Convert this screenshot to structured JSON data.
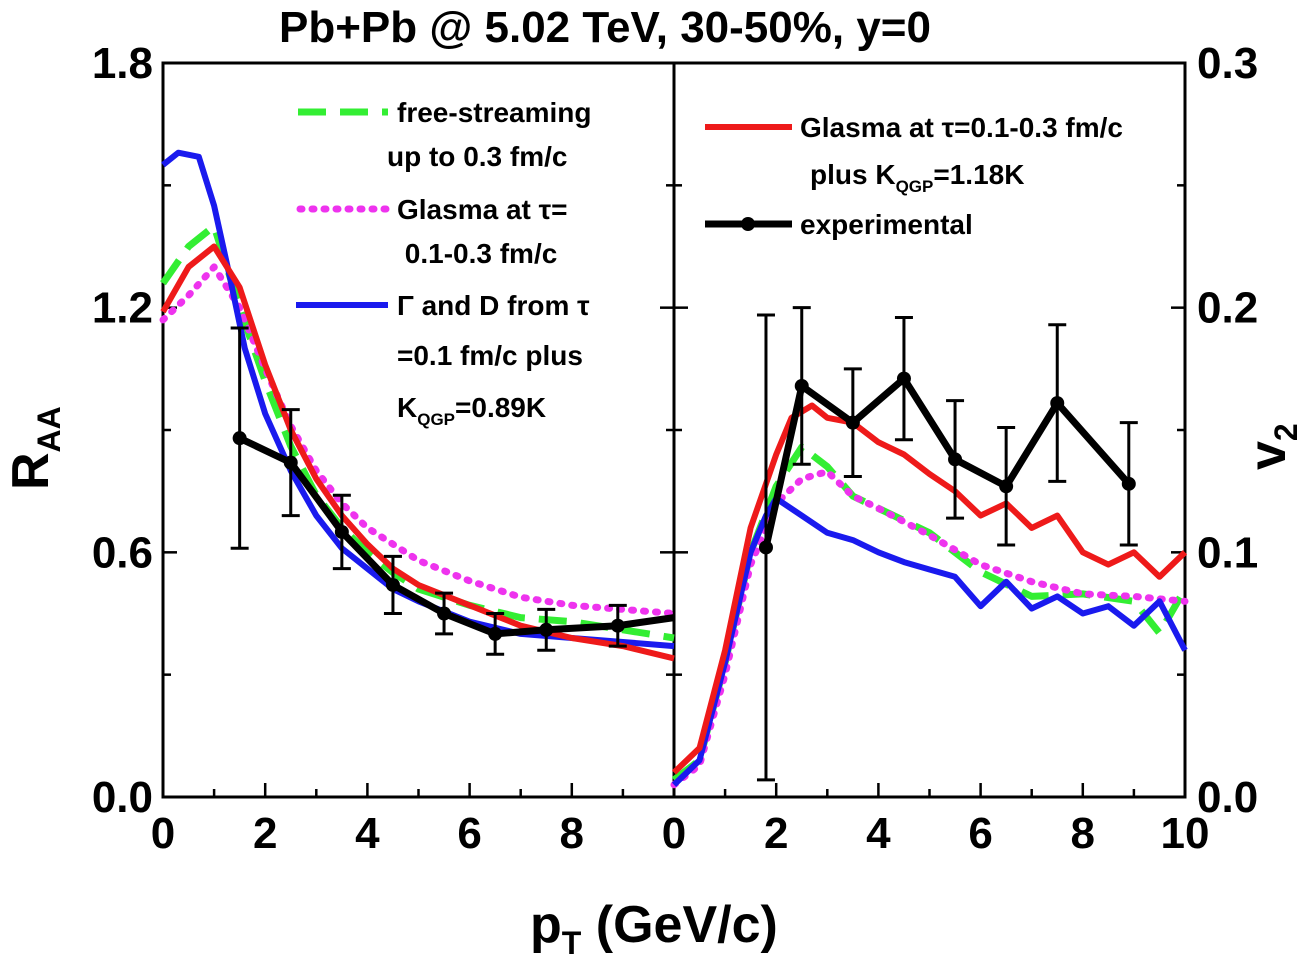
{
  "title": "Pb+Pb @ 5.02 TeV, 30-50%, y=0",
  "xlabel": {
    "main": "p",
    "sub": "T",
    "rest": " (GeV/c)"
  },
  "ylabel_left": {
    "main": "R",
    "sub": "AA"
  },
  "ylabel_right": {
    "main": "v",
    "sub": "2"
  },
  "left_legend": [
    {
      "id": "fs",
      "lines": [
        "free-streaming",
        "up to 0.3 fm/c"
      ]
    },
    {
      "id": "gl",
      "lines": [
        "Glasma at τ=",
        " 0.1-0.3 fm/c"
      ]
    },
    {
      "id": "gd",
      "lines": [
        "Γ and D from τ",
        "=0.1 fm/c plus"
      ],
      "k_main": "K",
      "k_sub": "QGP",
      "k_rest": "=0.89K"
    }
  ],
  "right_legend": [
    {
      "id": "gr",
      "lines": [
        "Glasma at τ=0.1-0.3 fm/c"
      ],
      "k_prefix": "plus K",
      "k_sub": "QGP",
      "k_rest": "=1.18K"
    },
    {
      "id": "ex",
      "lines": [
        "experimental"
      ]
    }
  ],
  "colors": {
    "free_streaming": "#33ee33",
    "glasma": "#ee33ee",
    "gamma_d": "#1a1aee",
    "glasma_k118": "#ee1a1a",
    "experimental": "#000000"
  },
  "chart_data": [
    {
      "type": "line",
      "panel": "left",
      "xlim": [
        0,
        10
      ],
      "ylim": [
        0,
        1.8
      ],
      "x_ticks": [
        "0",
        "2",
        "4",
        "6",
        "8"
      ],
      "y_ticks": [
        "0.0",
        "0.6",
        "1.2",
        "1.8"
      ],
      "ylabel": "R_AA",
      "series": [
        {
          "name": "free-streaming up to 0.3 fm/c",
          "style": "dashed",
          "x": [
            0,
            0.5,
            1,
            1.5,
            2,
            2.5,
            3,
            3.5,
            4,
            4.5,
            5,
            6,
            7,
            8,
            9,
            10
          ],
          "y": [
            1.26,
            1.35,
            1.4,
            1.2,
            1.02,
            0.86,
            0.74,
            0.66,
            0.6,
            0.55,
            0.51,
            0.47,
            0.44,
            0.43,
            0.41,
            0.39
          ]
        },
        {
          "name": "Glasma at τ= 0.1-0.3 fm/c",
          "style": "dotted",
          "x": [
            0,
            0.5,
            1,
            1.5,
            2,
            2.5,
            3,
            3.5,
            4,
            4.5,
            5,
            6,
            7,
            8,
            9,
            10
          ],
          "y": [
            1.17,
            1.23,
            1.3,
            1.2,
            1.05,
            0.91,
            0.8,
            0.72,
            0.66,
            0.62,
            0.58,
            0.53,
            0.49,
            0.47,
            0.46,
            0.45
          ]
        },
        {
          "name": "Γ and D from τ =0.1 fm/c plus K_QGP=0.89K",
          "style": "solid",
          "x": [
            0,
            0.3,
            0.7,
            1,
            1.3,
            1.6,
            2,
            2.5,
            3,
            3.5,
            4,
            4.5,
            5,
            6,
            7,
            8,
            9,
            10
          ],
          "y": [
            1.55,
            1.58,
            1.57,
            1.45,
            1.28,
            1.1,
            0.94,
            0.8,
            0.69,
            0.61,
            0.56,
            0.51,
            0.48,
            0.43,
            0.4,
            0.39,
            0.38,
            0.37
          ]
        },
        {
          "name": "Glasma at τ=0.1-0.3 fm/c plus K_QGP=1.18K",
          "style": "solid",
          "x": [
            0,
            0.5,
            1,
            1.5,
            2,
            2.5,
            3,
            3.5,
            4,
            4.5,
            5,
            6,
            7,
            8,
            9,
            10
          ],
          "y": [
            1.19,
            1.3,
            1.35,
            1.25,
            1.06,
            0.9,
            0.78,
            0.69,
            0.62,
            0.56,
            0.52,
            0.47,
            0.42,
            0.39,
            0.37,
            0.34
          ]
        },
        {
          "name": "experimental",
          "style": "line-markers",
          "x": [
            1.5,
            2.5,
            3.5,
            4.5,
            5.5,
            6.5,
            7.5,
            8.9,
            10
          ],
          "y": [
            0.88,
            0.82,
            0.65,
            0.52,
            0.45,
            0.4,
            0.41,
            0.42,
            0.44
          ],
          "err": [
            0.27,
            0.13,
            0.09,
            0.07,
            0.05,
            0.05,
            0.05,
            0.05,
            0
          ]
        }
      ]
    },
    {
      "type": "line",
      "panel": "right",
      "xlim": [
        0,
        10
      ],
      "ylim": [
        0,
        0.3
      ],
      "x_ticks": [
        "0",
        "2",
        "4",
        "6",
        "8",
        "10"
      ],
      "y_ticks": [
        "0.0",
        "0.1",
        "0.2",
        "0.3"
      ],
      "ylabel": "v_2",
      "series": [
        {
          "name": "free-streaming up to 0.3 fm/c",
          "style": "dashed",
          "x": [
            0,
            0.5,
            1,
            1.5,
            2,
            2.5,
            3,
            3.5,
            4,
            5,
            6,
            7,
            8,
            9,
            9.5,
            10
          ],
          "y": [
            0.007,
            0.015,
            0.055,
            0.1,
            0.127,
            0.143,
            0.135,
            0.123,
            0.118,
            0.108,
            0.092,
            0.082,
            0.083,
            0.08,
            0.067,
            0.085
          ]
        },
        {
          "name": "Glasma at τ= 0.1-0.3 fm/c",
          "style": "dotted",
          "x": [
            0,
            0.5,
            1,
            1.5,
            2,
            2.5,
            3,
            3.5,
            4,
            5,
            6,
            7,
            8,
            9,
            10
          ],
          "y": [
            0.005,
            0.013,
            0.05,
            0.095,
            0.12,
            0.13,
            0.133,
            0.123,
            0.118,
            0.107,
            0.095,
            0.088,
            0.083,
            0.082,
            0.08
          ]
        },
        {
          "name": "Γ and D from τ =0.1 fm/c plus K_QGP=0.89K",
          "style": "solid",
          "x": [
            0,
            0.5,
            1,
            1.5,
            1.8,
            2,
            2.5,
            3,
            3.5,
            4,
            4.5,
            5,
            5.5,
            6,
            6.5,
            7,
            7.5,
            8,
            8.5,
            9,
            9.5,
            10
          ],
          "y": [
            0.005,
            0.015,
            0.055,
            0.1,
            0.115,
            0.122,
            0.115,
            0.108,
            0.105,
            0.1,
            0.096,
            0.093,
            0.09,
            0.078,
            0.088,
            0.077,
            0.082,
            0.075,
            0.078,
            0.07,
            0.08,
            0.06
          ]
        },
        {
          "name": "Glasma at τ=0.1-0.3 fm/c plus K_QGP=1.18K",
          "style": "solid",
          "x": [
            0,
            0.5,
            1,
            1.5,
            2,
            2.3,
            2.7,
            3,
            3.5,
            4,
            4.5,
            5,
            5.5,
            6,
            6.5,
            7,
            7.5,
            8,
            8.5,
            9,
            9.5,
            10
          ],
          "y": [
            0.01,
            0.02,
            0.06,
            0.11,
            0.14,
            0.155,
            0.16,
            0.155,
            0.153,
            0.145,
            0.14,
            0.132,
            0.125,
            0.115,
            0.12,
            0.11,
            0.115,
            0.1,
            0.095,
            0.1,
            0.09,
            0.1
          ]
        },
        {
          "name": "experimental",
          "style": "line-markers",
          "x": [
            1.8,
            2.5,
            3.5,
            4.5,
            5.5,
            6.5,
            7.5,
            8.9
          ],
          "y": [
            0.102,
            0.168,
            0.153,
            0.171,
            0.138,
            0.127,
            0.161,
            0.128
          ],
          "err": [
            0.095,
            0.032,
            0.022,
            0.025,
            0.024,
            0.024,
            0.032,
            0.025
          ]
        }
      ]
    }
  ]
}
